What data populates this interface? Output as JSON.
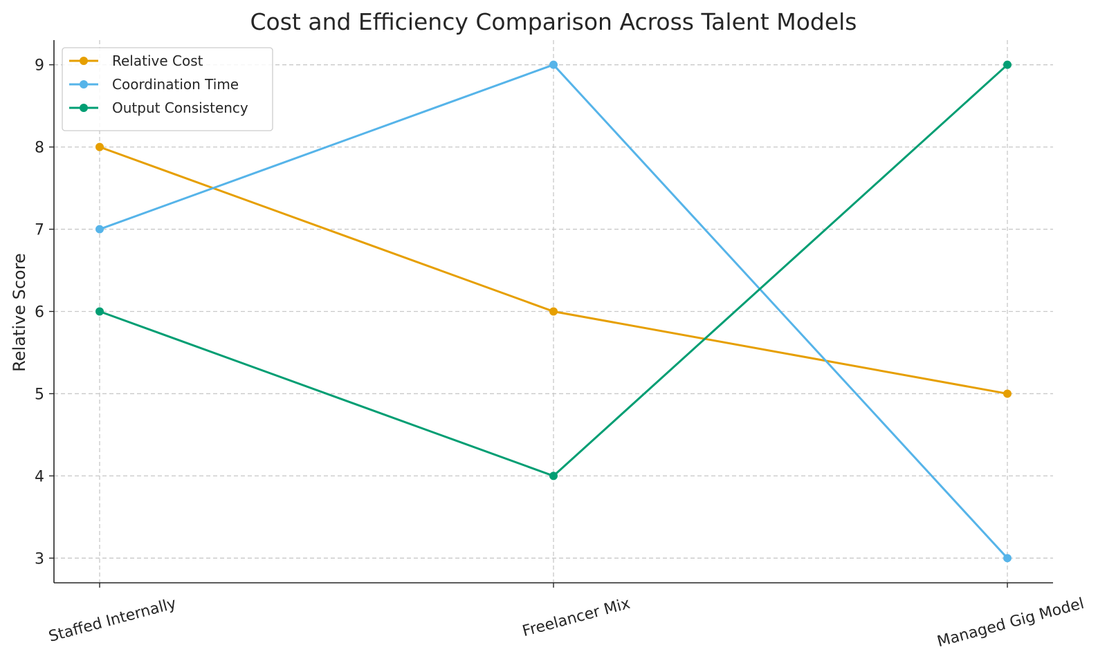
{
  "chart_data": {
    "type": "line",
    "title": "Cost and Efficiency Comparison Across Talent Models",
    "xlabel": "",
    "ylabel": "Relative Score",
    "categories": [
      "Staffed Internally",
      "Freelancer Mix",
      "Managed Gig Model"
    ],
    "ylim": [
      2.7,
      9.3
    ],
    "yticks": [
      3,
      4,
      5,
      6,
      7,
      8,
      9
    ],
    "grid": true,
    "legend_position": "top-left",
    "series": [
      {
        "name": "Relative Cost",
        "values": [
          8,
          6,
          5
        ],
        "color": "#E69F00"
      },
      {
        "name": "Coordination Time",
        "values": [
          7,
          9,
          3
        ],
        "color": "#56B4E9"
      },
      {
        "name": "Output Consistency",
        "values": [
          6,
          4,
          9
        ],
        "color": "#009E73"
      }
    ]
  }
}
